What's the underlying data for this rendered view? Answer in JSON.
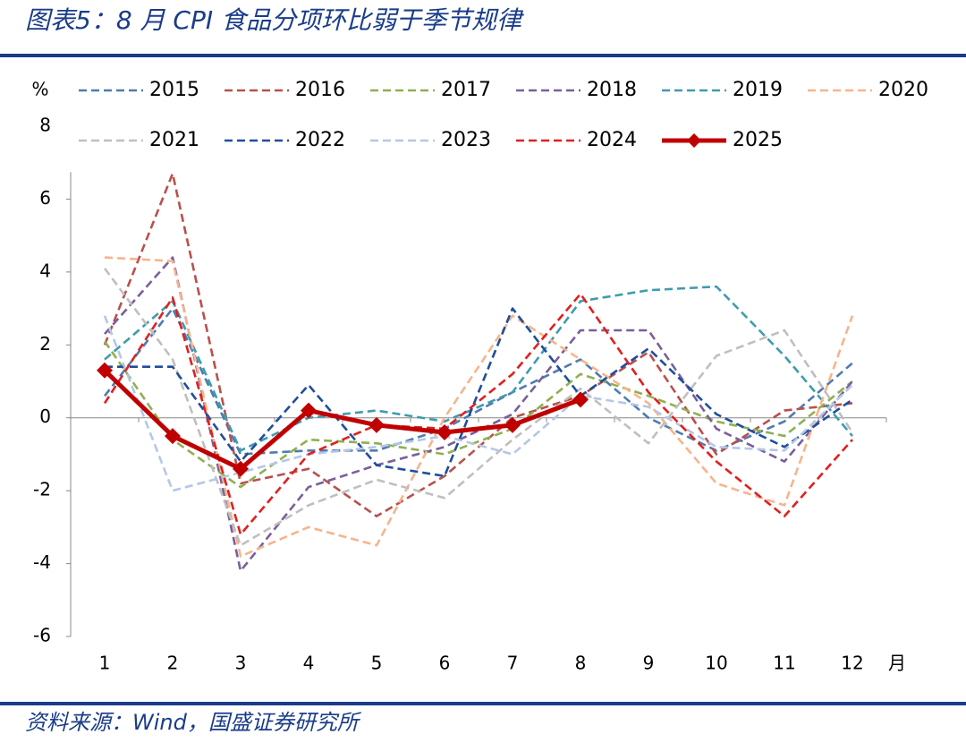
{
  "chart_data": {
    "type": "line",
    "title": "图表5：8 月 CPI 食品分项环比弱于季节规律",
    "source": "资料来源：Wind，国盛证券研究所",
    "y_label": "%",
    "x_label": "月",
    "categories": [
      1,
      2,
      3,
      4,
      5,
      6,
      7,
      8,
      9,
      10,
      11,
      12
    ],
    "ylim": [
      -6,
      8
    ],
    "yticks": [
      -6,
      -4,
      -2,
      0,
      2,
      4,
      6,
      8
    ],
    "series": [
      {
        "name": "2015",
        "color": "#4f7bb0",
        "style": "dashed",
        "values": [
          0.6,
          3.0,
          -1.0,
          -0.9,
          -0.9,
          -0.3,
          0.7,
          1.6,
          0.0,
          -0.9,
          -0.1,
          1.5
        ]
      },
      {
        "name": "2016",
        "color": "#b9504d",
        "style": "dashed",
        "values": [
          2.0,
          6.7,
          -1.8,
          -1.4,
          -2.7,
          -1.6,
          0.0,
          0.6,
          1.8,
          -1.0,
          0.2,
          0.4
        ]
      },
      {
        "name": "2017",
        "color": "#8fb050",
        "style": "dashed",
        "values": [
          2.1,
          -0.6,
          -1.9,
          -0.6,
          -0.7,
          -1.0,
          -0.3,
          1.2,
          0.6,
          -0.1,
          -0.5,
          1.0
        ]
      },
      {
        "name": "2018",
        "color": "#7a5f9a",
        "style": "dashed",
        "values": [
          2.3,
          4.4,
          -4.2,
          -1.9,
          -1.3,
          -0.8,
          0.1,
          2.4,
          2.4,
          -0.3,
          -1.2,
          1.0
        ]
      },
      {
        "name": "2019",
        "color": "#3f9cae",
        "style": "dashed",
        "values": [
          1.6,
          3.2,
          -0.9,
          0.0,
          0.2,
          -0.1,
          0.7,
          3.2,
          3.5,
          3.6,
          1.7,
          -0.5
        ]
      },
      {
        "name": "2020",
        "color": "#f7b48c",
        "style": "dashed",
        "values": [
          4.4,
          4.3,
          -3.8,
          -3.0,
          -3.5,
          0.0,
          2.8,
          1.6,
          0.4,
          -1.8,
          -2.4,
          2.8
        ]
      },
      {
        "name": "2021",
        "color": "#bfbfbf",
        "style": "dashed",
        "values": [
          4.1,
          1.6,
          -3.5,
          -2.4,
          -1.7,
          -2.2,
          -0.6,
          0.8,
          -0.7,
          1.7,
          2.4,
          -0.4
        ]
      },
      {
        "name": "2022",
        "color": "#1f4e9c",
        "style": "dashed",
        "values": [
          1.4,
          1.4,
          -1.2,
          0.9,
          -1.3,
          -1.6,
          3.0,
          0.6,
          1.9,
          0.1,
          -0.8,
          0.5
        ]
      },
      {
        "name": "2023",
        "color": "#b4c7e7",
        "style": "dashed",
        "values": [
          2.8,
          -2.0,
          -1.5,
          -1.0,
          -0.8,
          -0.5,
          -1.0,
          0.6,
          0.3,
          -0.8,
          -0.9,
          0.9
        ]
      },
      {
        "name": "2024",
        "color": "#e02020",
        "style": "dashed",
        "values": [
          0.4,
          3.3,
          -3.2,
          -1.0,
          -0.2,
          -0.3,
          1.2,
          3.4,
          0.7,
          -1.2,
          -2.7,
          -0.6
        ]
      },
      {
        "name": "2025",
        "color": "#c00000",
        "style": "solid",
        "marker": "diamond",
        "values": [
          1.3,
          -0.5,
          -1.4,
          0.2,
          -0.2,
          -0.4,
          -0.2,
          0.5,
          null,
          null,
          null,
          null
        ]
      }
    ]
  }
}
